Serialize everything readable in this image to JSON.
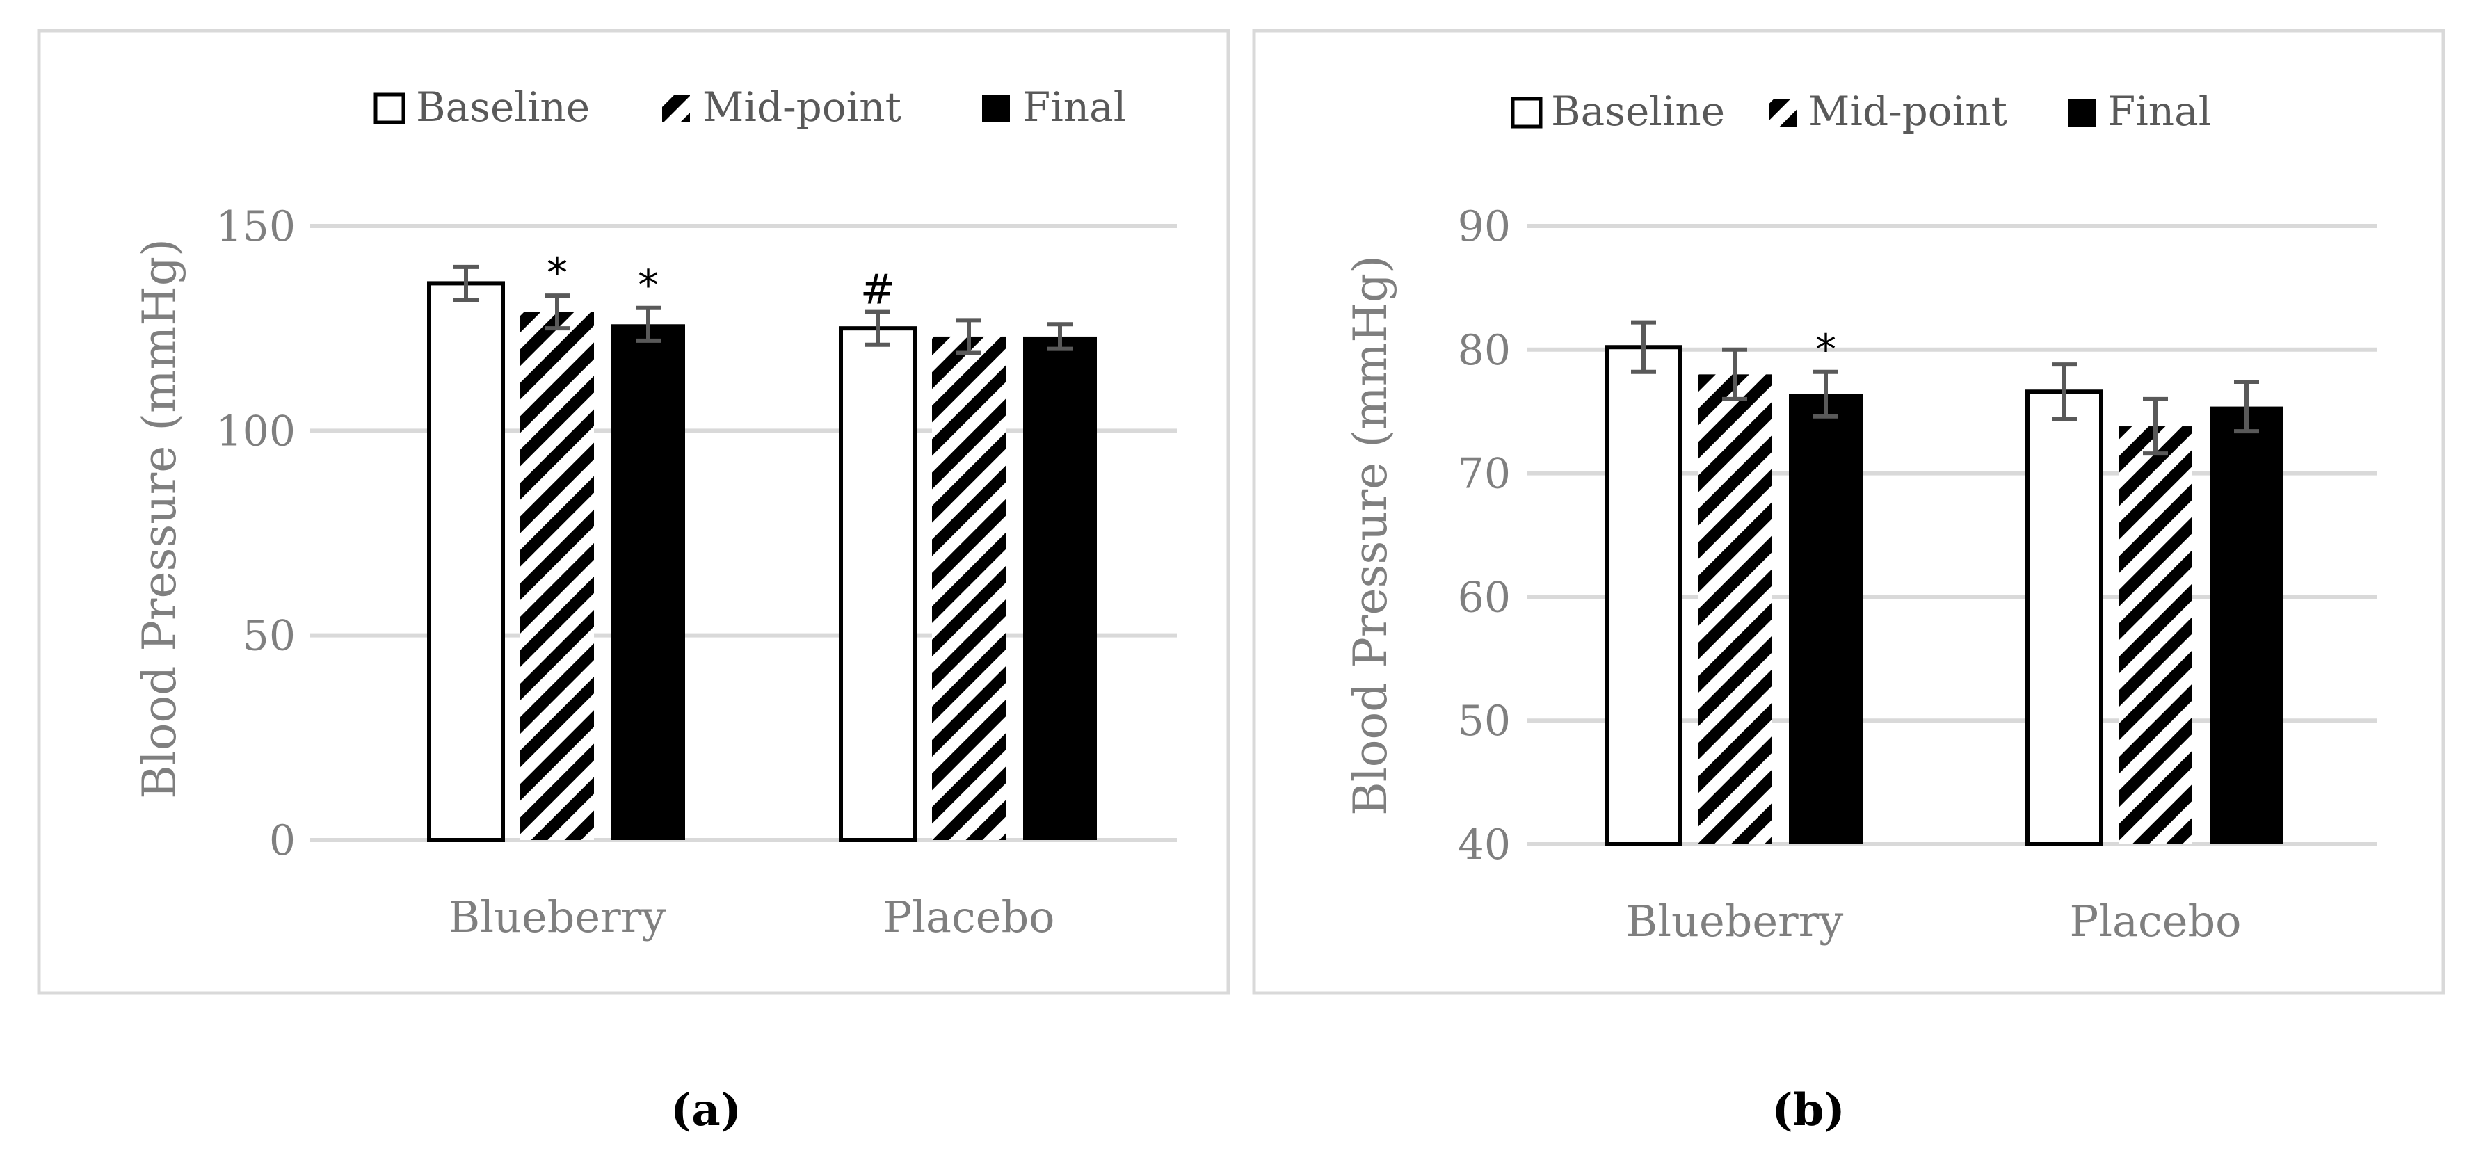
{
  "figure": {
    "legend": {
      "baseline": "Baseline",
      "midpoint": "Mid-point",
      "final": "Final"
    },
    "panel_a_label": "(a)",
    "panel_b_label": "(b)"
  },
  "chart_data": [
    {
      "type": "bar",
      "panel": "(a)",
      "title": "",
      "xlabel": "",
      "ylabel": "Blood Pressure (mmHg)",
      "ylim": [
        0,
        150
      ],
      "yticks": [
        0,
        50,
        100,
        150
      ],
      "ytick_labels": [
        "0",
        "50",
        "100",
        "150"
      ],
      "categories": [
        "Blueberry",
        "Placebo"
      ],
      "series": [
        {
          "name": "Baseline",
          "fill": "white",
          "values": [
            136,
            125
          ],
          "errors": [
            4,
            4
          ],
          "annotations": [
            "",
            "#"
          ]
        },
        {
          "name": "Mid-point",
          "fill": "hatch",
          "values": [
            129,
            123
          ],
          "errors": [
            4,
            4
          ],
          "annotations": [
            "*",
            ""
          ]
        },
        {
          "name": "Final",
          "fill": "black",
          "values": [
            126,
            123
          ],
          "errors": [
            4,
            3
          ],
          "annotations": [
            "*",
            ""
          ]
        }
      ],
      "grid": true,
      "legend_position": "top"
    },
    {
      "type": "bar",
      "panel": "(b)",
      "title": "",
      "xlabel": "",
      "ylabel": "Blood Pressure (mmHg)",
      "ylim": [
        40,
        90
      ],
      "yticks": [
        40,
        50,
        60,
        70,
        80,
        90
      ],
      "ytick_labels": [
        "40",
        "50",
        "60",
        "70",
        "80",
        "90"
      ],
      "categories": [
        "Blueberry",
        "Placebo"
      ],
      "series": [
        {
          "name": "Baseline",
          "fill": "white",
          "values": [
            80.2,
            76.6
          ],
          "errors": [
            2.0,
            2.2
          ],
          "annotations": [
            "",
            ""
          ]
        },
        {
          "name": "Mid-point",
          "fill": "hatch",
          "values": [
            78.0,
            73.8
          ],
          "errors": [
            2.0,
            2.2
          ],
          "annotations": [
            "",
            ""
          ]
        },
        {
          "name": "Final",
          "fill": "black",
          "values": [
            76.4,
            75.4
          ],
          "errors": [
            1.8,
            2.0
          ],
          "annotations": [
            "*",
            ""
          ]
        }
      ],
      "grid": true,
      "legend_position": "top"
    }
  ]
}
